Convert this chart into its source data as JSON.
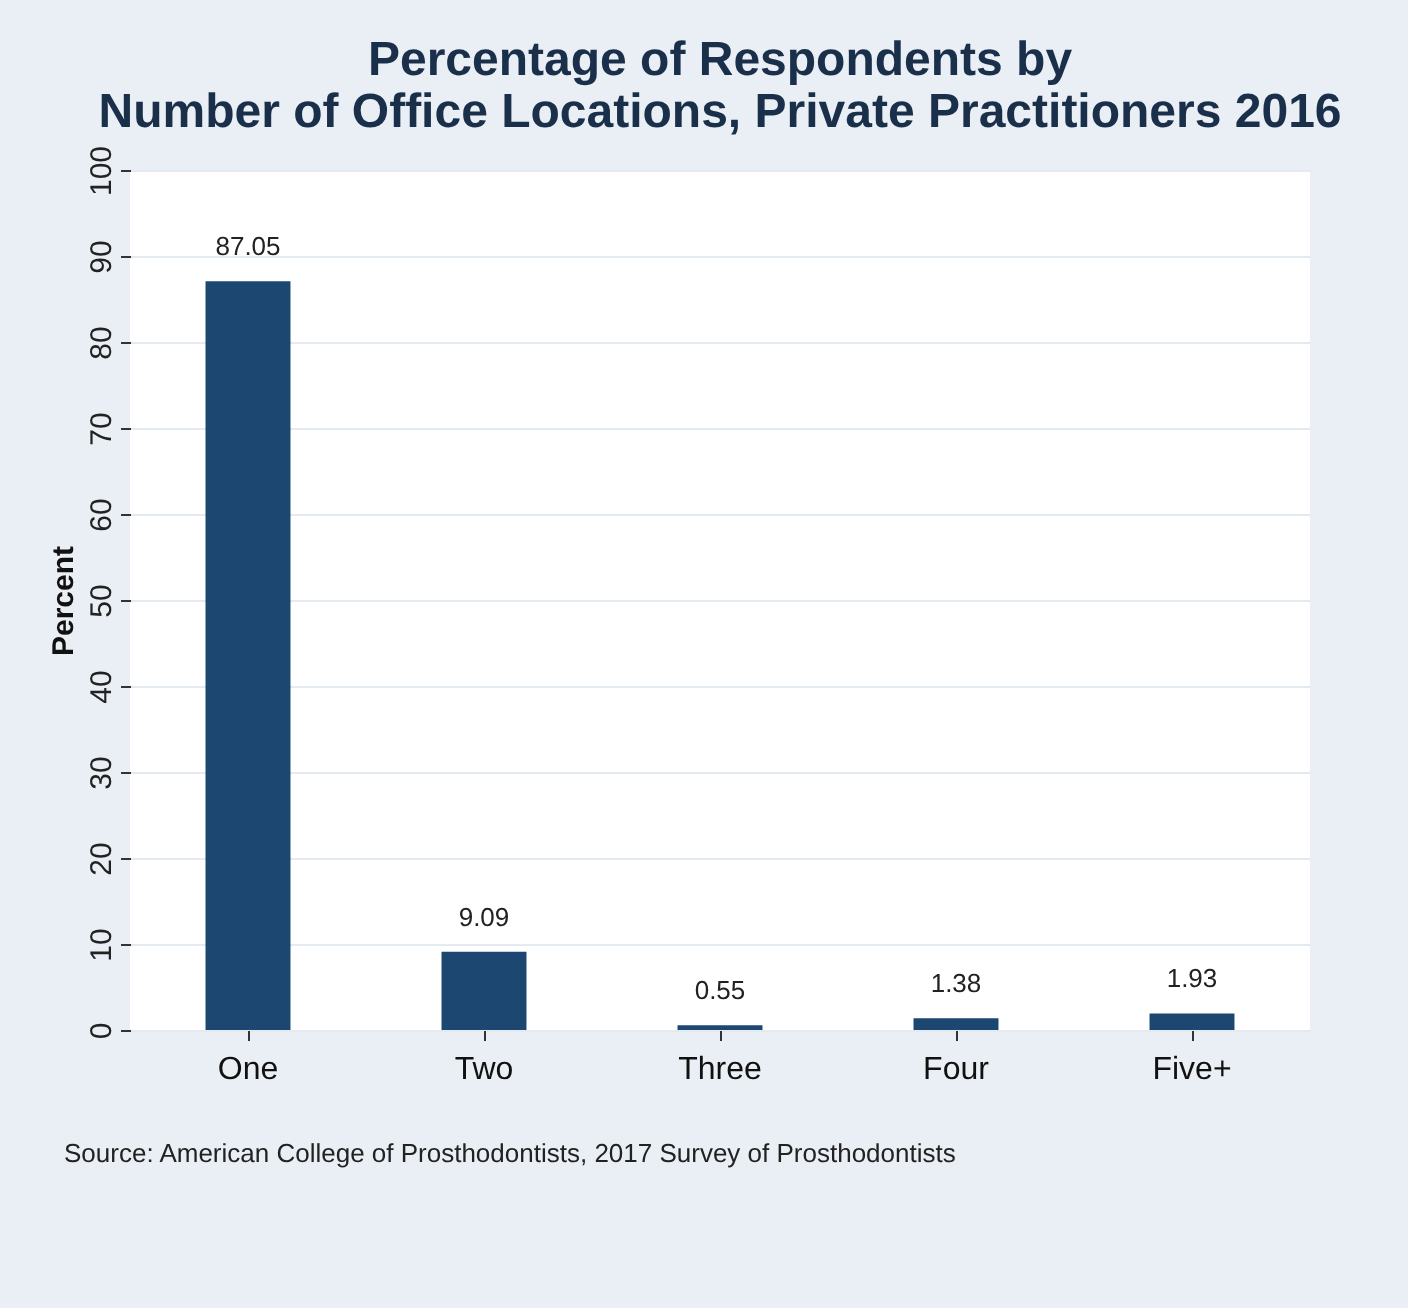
{
  "chart_data": {
    "type": "bar",
    "title": "Percentage of Respondents by Number of Office Locations,",
    "subtitle": "Private Practitioners 2016",
    "ylabel": "Percent",
    "categories": [
      "One",
      "Two",
      "Three",
      "Four",
      "Five+"
    ],
    "values": [
      87.05,
      9.09,
      0.55,
      1.38,
      1.93
    ],
    "color": "#1c4770",
    "ylim": [
      0,
      100
    ],
    "yticks": [
      0,
      10,
      20,
      30,
      40,
      50,
      60,
      70,
      80,
      90,
      100
    ],
    "grid": "y",
    "data_labels": true,
    "annotations": [
      "Source: American College of Prosthodontists, 2017 Survey of Prosthodontists"
    ]
  }
}
